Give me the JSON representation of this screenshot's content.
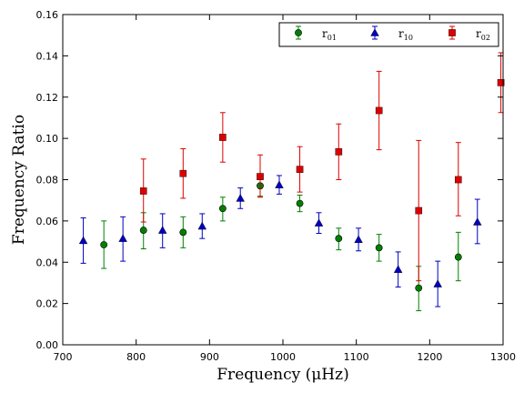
{
  "chart_data": {
    "type": "scatter",
    "xlabel": "Frequency  (μHz)",
    "ylabel": "Frequency Ratio",
    "xlim": [
      700,
      1300
    ],
    "ylim": [
      0,
      0.16
    ],
    "x_ticks": [
      "700",
      "800",
      "900",
      "1000",
      "1100",
      "1200",
      "1300"
    ],
    "y_ticks": [
      "0.00",
      "0.02",
      "0.04",
      "0.06",
      "0.08",
      "0.10",
      "0.12",
      "0.14",
      "0.16"
    ],
    "grid": false,
    "legend_position": "top-right",
    "series": [
      {
        "name": "r01",
        "name_base": "r",
        "name_sub": "01",
        "color": "#008000",
        "marker": "circle",
        "points": [
          {
            "x": 756,
            "y": 0.0485,
            "lo": 0.037,
            "hi": 0.06
          },
          {
            "x": 810,
            "y": 0.0555,
            "lo": 0.0465,
            "hi": 0.064
          },
          {
            "x": 864,
            "y": 0.0545,
            "lo": 0.047,
            "hi": 0.062
          },
          {
            "x": 918,
            "y": 0.066,
            "lo": 0.06,
            "hi": 0.0715
          },
          {
            "x": 969,
            "y": 0.077,
            "lo": 0.072,
            "hi": 0.0815
          },
          {
            "x": 1023,
            "y": 0.0685,
            "lo": 0.0645,
            "hi": 0.0725
          },
          {
            "x": 1076,
            "y": 0.0515,
            "lo": 0.046,
            "hi": 0.0565
          },
          {
            "x": 1131,
            "y": 0.047,
            "lo": 0.0405,
            "hi": 0.0535
          },
          {
            "x": 1185,
            "y": 0.0275,
            "lo": 0.0165,
            "hi": 0.038
          },
          {
            "x": 1239,
            "y": 0.0425,
            "lo": 0.031,
            "hi": 0.0545
          }
        ]
      },
      {
        "name": "r10",
        "name_base": "r",
        "name_sub": "10",
        "color": "#0000bf",
        "marker": "triangle",
        "points": [
          {
            "x": 728,
            "y": 0.0505,
            "lo": 0.0395,
            "hi": 0.0615
          },
          {
            "x": 782,
            "y": 0.0515,
            "lo": 0.0405,
            "hi": 0.062
          },
          {
            "x": 836,
            "y": 0.0555,
            "lo": 0.047,
            "hi": 0.0635
          },
          {
            "x": 890,
            "y": 0.0575,
            "lo": 0.0515,
            "hi": 0.0635
          },
          {
            "x": 942,
            "y": 0.071,
            "lo": 0.066,
            "hi": 0.076
          },
          {
            "x": 995,
            "y": 0.0775,
            "lo": 0.073,
            "hi": 0.082
          },
          {
            "x": 1049,
            "y": 0.059,
            "lo": 0.054,
            "hi": 0.064
          },
          {
            "x": 1103,
            "y": 0.051,
            "lo": 0.0455,
            "hi": 0.0565
          },
          {
            "x": 1157,
            "y": 0.0365,
            "lo": 0.028,
            "hi": 0.045
          },
          {
            "x": 1211,
            "y": 0.0295,
            "lo": 0.0185,
            "hi": 0.0405
          },
          {
            "x": 1265,
            "y": 0.0595,
            "lo": 0.049,
            "hi": 0.0705
          }
        ]
      },
      {
        "name": "r02",
        "name_base": "r",
        "name_sub": "02",
        "color": "#dd0000",
        "marker": "square",
        "points": [
          {
            "x": 810,
            "y": 0.0745,
            "lo": 0.0595,
            "hi": 0.09
          },
          {
            "x": 864,
            "y": 0.083,
            "lo": 0.071,
            "hi": 0.095
          },
          {
            "x": 918,
            "y": 0.1005,
            "lo": 0.0885,
            "hi": 0.1125
          },
          {
            "x": 969,
            "y": 0.0815,
            "lo": 0.0715,
            "hi": 0.092
          },
          {
            "x": 1023,
            "y": 0.085,
            "lo": 0.074,
            "hi": 0.096
          },
          {
            "x": 1076,
            "y": 0.0935,
            "lo": 0.08,
            "hi": 0.107
          },
          {
            "x": 1131,
            "y": 0.1135,
            "lo": 0.0945,
            "hi": 0.1325
          },
          {
            "x": 1185,
            "y": 0.065,
            "lo": 0.031,
            "hi": 0.099
          },
          {
            "x": 1239,
            "y": 0.08,
            "lo": 0.0625,
            "hi": 0.098
          },
          {
            "x": 1297,
            "y": 0.127,
            "lo": 0.1125,
            "hi": 0.1415
          }
        ]
      }
    ]
  }
}
